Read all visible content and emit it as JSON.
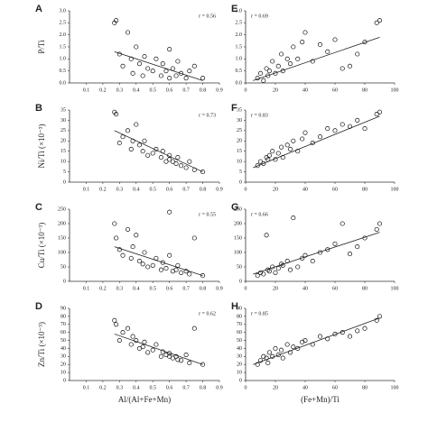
{
  "chart_data": [
    {
      "type": "scatter",
      "label": "A",
      "annotation": "r = 0.56",
      "y_label": "P/Ti",
      "x": [
        0.27,
        0.28,
        0.3,
        0.32,
        0.35,
        0.37,
        0.38,
        0.4,
        0.42,
        0.44,
        0.45,
        0.47,
        0.5,
        0.52,
        0.55,
        0.56,
        0.58,
        0.6,
        0.6,
        0.62,
        0.64,
        0.65,
        0.67,
        0.7,
        0.72,
        0.75,
        0.8
      ],
      "values": [
        2.5,
        2.6,
        1.2,
        0.7,
        2.1,
        1.0,
        0.4,
        1.5,
        0.8,
        0.3,
        1.1,
        0.6,
        0.5,
        1.0,
        0.3,
        0.8,
        0.5,
        0.2,
        1.4,
        0.6,
        0.3,
        0.9,
        0.4,
        0.2,
        0.5,
        0.7,
        0.2
      ],
      "fit_x": [
        0.27,
        0.8
      ],
      "fit_y": [
        1.3,
        0.1
      ],
      "xlim": [
        0,
        0.9
      ],
      "xticks": [
        0.1,
        0.2,
        0.3,
        0.4,
        0.5,
        0.6,
        0.7,
        0.8,
        0.9
      ],
      "ylim": [
        0,
        3
      ],
      "yticks": [
        {
          "value": 0,
          "label": "0.0"
        },
        0.5,
        {
          "value": 1,
          "label": "1.0"
        },
        1.5,
        {
          "value": 2,
          "label": "2.0"
        },
        2.5,
        {
          "value": 3,
          "label": "3.0"
        }
      ]
    },
    {
      "type": "scatter",
      "label": "B",
      "annotation": "r = 0.73",
      "y_label": "Ni/Ti (×10⁻³)",
      "x": [
        0.27,
        0.28,
        0.3,
        0.32,
        0.35,
        0.37,
        0.38,
        0.4,
        0.42,
        0.44,
        0.45,
        0.47,
        0.5,
        0.52,
        0.55,
        0.56,
        0.58,
        0.6,
        0.6,
        0.62,
        0.64,
        0.65,
        0.67,
        0.7,
        0.72,
        0.75,
        0.8
      ],
      "values": [
        34,
        33,
        19,
        22,
        25,
        16,
        20,
        28,
        18,
        15,
        20,
        13,
        14,
        16,
        12,
        15,
        10,
        11,
        13,
        10,
        9,
        12,
        8,
        7,
        10,
        6,
        5
      ],
      "fit_x": [
        0.27,
        0.8
      ],
      "fit_y": [
        25,
        5
      ],
      "xlim": [
        0,
        0.9
      ],
      "xticks": [
        0.1,
        0.2,
        0.3,
        0.4,
        0.5,
        0.6,
        0.7,
        0.8,
        0.9
      ],
      "ylim": [
        0,
        35
      ],
      "yticks": [
        0,
        5,
        10,
        15,
        20,
        25,
        30,
        35
      ]
    },
    {
      "type": "scatter",
      "label": "C",
      "annotation": "r = 0.55",
      "y_label": "Cu/Ti (×10⁻³)",
      "x": [
        0.27,
        0.28,
        0.3,
        0.32,
        0.35,
        0.37,
        0.38,
        0.4,
        0.42,
        0.44,
        0.45,
        0.47,
        0.5,
        0.52,
        0.55,
        0.56,
        0.58,
        0.6,
        0.6,
        0.62,
        0.64,
        0.65,
        0.67,
        0.7,
        0.72,
        0.75,
        0.8
      ],
      "values": [
        200,
        150,
        110,
        90,
        180,
        80,
        120,
        160,
        70,
        60,
        100,
        50,
        55,
        80,
        40,
        65,
        45,
        240,
        90,
        35,
        40,
        55,
        30,
        35,
        25,
        150,
        20
      ],
      "fit_x": [
        0.27,
        0.8
      ],
      "fit_y": [
        120,
        20
      ],
      "xlim": [
        0,
        0.9
      ],
      "xticks": [
        0.1,
        0.2,
        0.3,
        0.4,
        0.5,
        0.6,
        0.7,
        0.8,
        0.9
      ],
      "ylim": [
        0,
        250
      ],
      "yticks": [
        0,
        50,
        100,
        150,
        200,
        250
      ]
    },
    {
      "type": "scatter",
      "label": "D",
      "annotation": "r = 0.62",
      "y_label": "Zn/Ti (×10⁻³)",
      "x_label": "Al/(Al+Fe+Mn)",
      "x": [
        0.27,
        0.28,
        0.3,
        0.32,
        0.35,
        0.37,
        0.38,
        0.4,
        0.42,
        0.44,
        0.45,
        0.47,
        0.5,
        0.52,
        0.55,
        0.56,
        0.58,
        0.6,
        0.6,
        0.62,
        0.64,
        0.65,
        0.67,
        0.7,
        0.72,
        0.75,
        0.8
      ],
      "values": [
        75,
        70,
        50,
        60,
        65,
        45,
        55,
        50,
        40,
        42,
        48,
        35,
        38,
        45,
        30,
        36,
        32,
        30,
        34,
        28,
        30,
        26,
        25,
        32,
        22,
        65,
        20
      ],
      "fit_x": [
        0.27,
        0.8
      ],
      "fit_y": [
        58,
        20
      ],
      "xlim": [
        0,
        0.9
      ],
      "xticks": [
        0.1,
        0.2,
        0.3,
        0.4,
        0.5,
        0.6,
        0.7,
        0.8,
        0.9
      ],
      "ylim": [
        0,
        90
      ],
      "yticks": [
        0,
        10,
        20,
        30,
        40,
        50,
        60,
        70,
        80,
        90
      ]
    },
    {
      "type": "scatter",
      "label": "E",
      "annotation": "r = 0.69",
      "x": [
        8,
        10,
        12,
        14,
        15,
        16,
        18,
        20,
        22,
        24,
        25,
        28,
        30,
        32,
        35,
        38,
        40,
        45,
        50,
        55,
        60,
        65,
        70,
        75,
        80,
        88,
        90
      ],
      "values": [
        0.2,
        0.4,
        0.1,
        0.6,
        0.3,
        0.5,
        0.9,
        0.4,
        0.7,
        1.2,
        0.5,
        1.0,
        0.8,
        1.5,
        1.0,
        1.7,
        2.1,
        0.9,
        1.6,
        1.3,
        1.8,
        0.6,
        0.7,
        1.2,
        1.7,
        2.5,
        2.6
      ],
      "fit_x": [
        5,
        90
      ],
      "fit_y": [
        0.1,
        1.9
      ],
      "xlim": [
        0,
        100
      ],
      "xticks": [
        0,
        20,
        40,
        60,
        80,
        100
      ],
      "ylim": [
        0,
        3
      ],
      "yticks": [
        {
          "value": 0,
          "label": "0.0"
        },
        0.5,
        {
          "value": 1,
          "label": "1.0"
        },
        1.5,
        {
          "value": 2,
          "label": "2.0"
        },
        2.5,
        {
          "value": 3,
          "label": "3.0"
        }
      ]
    },
    {
      "type": "scatter",
      "label": "F",
      "annotation": "r = 0.83",
      "x": [
        8,
        10,
        12,
        14,
        15,
        16,
        18,
        20,
        22,
        24,
        25,
        28,
        30,
        32,
        35,
        38,
        40,
        45,
        50,
        55,
        60,
        65,
        70,
        75,
        80,
        88,
        90
      ],
      "values": [
        8,
        10,
        9,
        12,
        11,
        13,
        15,
        11,
        14,
        17,
        12,
        18,
        16,
        20,
        15,
        21,
        24,
        19,
        22,
        26,
        25,
        28,
        27,
        30,
        26,
        33,
        34
      ],
      "fit_x": [
        5,
        90
      ],
      "fit_y": [
        7,
        32
      ],
      "xlim": [
        0,
        100
      ],
      "xticks": [
        0,
        20,
        40,
        60,
        80,
        100
      ],
      "ylim": [
        0,
        35
      ],
      "yticks": [
        0,
        5,
        10,
        15,
        20,
        25,
        30,
        35
      ]
    },
    {
      "type": "scatter",
      "label": "G",
      "annotation": "r = 0.66",
      "x": [
        8,
        10,
        12,
        14,
        15,
        16,
        18,
        20,
        22,
        24,
        25,
        28,
        30,
        32,
        35,
        38,
        40,
        45,
        50,
        55,
        60,
        65,
        70,
        75,
        80,
        88,
        90
      ],
      "values": [
        20,
        30,
        25,
        160,
        40,
        35,
        50,
        30,
        45,
        60,
        55,
        70,
        40,
        220,
        50,
        80,
        90,
        70,
        100,
        110,
        130,
        200,
        95,
        120,
        150,
        180,
        200
      ],
      "fit_x": [
        5,
        90
      ],
      "fit_y": [
        25,
        170
      ],
      "xlim": [
        0,
        100
      ],
      "xticks": [
        0,
        20,
        40,
        60,
        80,
        100
      ],
      "ylim": [
        0,
        250
      ],
      "yticks": [
        0,
        50,
        100,
        150,
        200,
        250
      ]
    },
    {
      "type": "scatter",
      "label": "H",
      "annotation": "r = 0.85",
      "x_label": "(Fe+Mn)/Ti",
      "x": [
        8,
        10,
        12,
        14,
        15,
        16,
        18,
        20,
        22,
        24,
        25,
        28,
        30,
        32,
        35,
        38,
        40,
        45,
        50,
        55,
        60,
        65,
        70,
        75,
        80,
        88,
        90
      ],
      "values": [
        20,
        25,
        30,
        28,
        22,
        35,
        30,
        40,
        32,
        38,
        28,
        45,
        35,
        42,
        40,
        48,
        50,
        45,
        55,
        52,
        58,
        60,
        55,
        62,
        65,
        75,
        80
      ],
      "fit_x": [
        5,
        90
      ],
      "fit_y": [
        20,
        78
      ],
      "xlim": [
        0,
        100
      ],
      "xticks": [
        0,
        20,
        40,
        60,
        80,
        100
      ],
      "ylim": [
        0,
        90
      ],
      "yticks": [
        0,
        10,
        20,
        30,
        40,
        50,
        60,
        70,
        80,
        90
      ]
    }
  ]
}
